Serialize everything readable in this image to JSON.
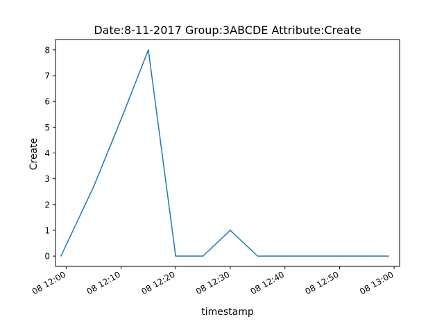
{
  "chart_data": {
    "type": "line",
    "title": "Date:8-11-2017  Group:3ABCDE Attribute:Create",
    "xlabel": "timestamp",
    "ylabel": "Create",
    "x_ticks": [
      "12:00",
      "12:10",
      "12:20",
      "12:30",
      "12:40",
      "12:50",
      "13:00"
    ],
    "x_tick_labels": [
      "08 12:00",
      "08 12:10",
      "08 12:20",
      "08 12:30",
      "08 12:40",
      "08 12:50",
      "08 13:00"
    ],
    "y_ticks": [
      0,
      1,
      2,
      3,
      4,
      5,
      6,
      7,
      8
    ],
    "xlim": [
      "11:58",
      "13:01"
    ],
    "ylim": [
      -0.4,
      8.4
    ],
    "grid": false,
    "series": [
      {
        "color": "#1f77b4",
        "x": [
          "11:59",
          "12:05",
          "12:10",
          "12:15",
          "12:20",
          "12:25",
          "12:30",
          "12:35",
          "12:40",
          "12:45",
          "12:50",
          "12:55",
          "12:59"
        ],
        "values": [
          0,
          2.7,
          5.3,
          8,
          0,
          0,
          1,
          0,
          0,
          0,
          0,
          0,
          0
        ]
      }
    ]
  }
}
